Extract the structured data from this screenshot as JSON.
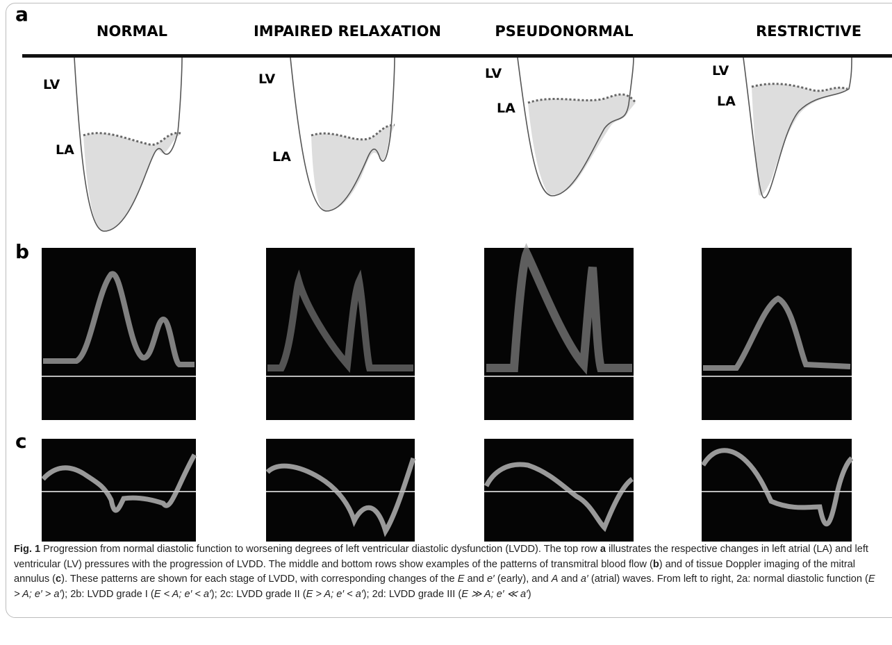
{
  "panel_labels": [
    "a",
    "b",
    "c"
  ],
  "columns": [
    "NORMAL",
    "IMPAIRED RELAXATION",
    "PSEUDONORMAL",
    "RESTRICTIVE"
  ],
  "curve_labels": [
    {
      "lv": "LV",
      "la": "LA"
    },
    {
      "lv": "LV",
      "la": "LA"
    },
    {
      "lv": "LV",
      "la": "LA"
    },
    {
      "lv": "LV",
      "la": "LA"
    }
  ],
  "caption": [
    "Fig. 1",
    " Progression from normal diastolic function to worsening degrees of left ventricular diastolic dysfunction (LVDD). The top row ",
    "a",
    " illustrates the respective changes in left atrial (LA) and left ventricular (LV) pressures with the progression of LVDD. The middle and bottom rows show examples of the patterns of transmitral blood flow (",
    "b",
    ") and of tissue Doppler imaging of the mitral annulus (",
    "c",
    "). These patterns are shown for each stage of LVDD, with corresponding changes of the ",
    "E",
    " and ",
    "e′",
    " (early), and ",
    "A",
    " and ",
    "a′",
    " (atrial) waves. From left to right, 2a: normal diastolic function (",
    "E > A; e′ > a′",
    "); 2b: LVDD grade I (",
    "E < A; e′ < a′",
    "); 2c: LVDD grade II (",
    "E > A; e′ < a′",
    "); 2d: LVDD grade III (",
    "E ≫ A; e′ ≪ a′",
    ")"
  ]
}
